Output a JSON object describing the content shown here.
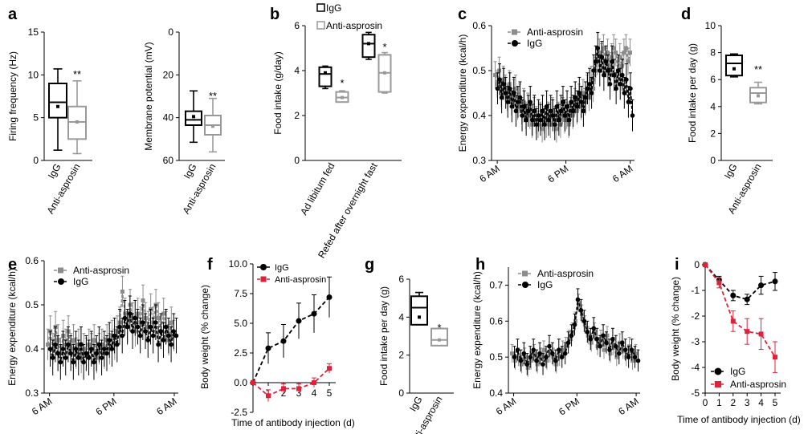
{
  "chart_data": [
    {
      "panel": "a",
      "type": "box",
      "categories": [
        "IgG",
        "Anti-asprosin"
      ],
      "ylabel": "Firing frequency (Hz)",
      "ylim": [
        0,
        15
      ],
      "yticks": [
        0,
        5,
        10,
        15
      ],
      "boxes": [
        {
          "min": 1.2,
          "q1": 5.0,
          "median": 6.8,
          "q3": 9.0,
          "max": 10.7,
          "mean": 6.3
        },
        {
          "min": 0.8,
          "q1": 2.5,
          "median": 4.5,
          "q3": 6.3,
          "max": 9.3,
          "mean": 4.5
        }
      ],
      "annotation": "**",
      "colors": [
        "#000000",
        "#999999"
      ]
    },
    {
      "panel": "a2",
      "type": "box",
      "categories": [
        "IgG",
        "Anti-asprosin"
      ],
      "ylabel": "Membrane potential (mV)",
      "ylim": [
        0,
        60
      ],
      "yticks": [
        0,
        20,
        40,
        60
      ],
      "inverted": true,
      "boxes": [
        {
          "min": 27.5,
          "q1": 37,
          "median": 41,
          "q3": 43.5,
          "max": 51.5,
          "mean": 39.5
        },
        {
          "min": 31,
          "q1": 39,
          "median": 43.5,
          "q3": 48,
          "max": 56,
          "mean": 44
        }
      ],
      "annotation": "**",
      "colors": [
        "#000000",
        "#999999"
      ]
    },
    {
      "panel": "b",
      "type": "box",
      "categories": [
        "Ad libitum fed",
        "Refed after overnight fast"
      ],
      "ylabel": "Food intake (g/day)",
      "ylim": [
        0,
        6
      ],
      "yticks": [
        0,
        2,
        4,
        6
      ],
      "legend": [
        "IgG",
        "Anti-asprosin"
      ],
      "groups": [
        [
          {
            "min": 3.2,
            "q1": 3.3,
            "median": 3.85,
            "q3": 4.15,
            "max": 4.2,
            "mean": 3.9
          },
          {
            "min": 2.6,
            "q1": 2.6,
            "median": 2.8,
            "q3": 3.05,
            "max": 3.1,
            "mean": 2.8
          }
        ],
        [
          {
            "min": 4.5,
            "q1": 4.6,
            "median": 5.2,
            "q3": 5.6,
            "max": 5.7,
            "mean": 5.2
          },
          {
            "min": 3.0,
            "q1": 3.05,
            "median": 3.9,
            "q3": 4.7,
            "max": 4.8,
            "mean": 3.9
          }
        ]
      ],
      "annotation": "*",
      "colors": [
        "#000000",
        "#999999"
      ]
    },
    {
      "panel": "c",
      "type": "line",
      "ylabel": "Energy expenditure (kcal/h)",
      "ylim": [
        0.3,
        0.6
      ],
      "yticks": [
        0.3,
        0.4,
        0.5
      ],
      "xticks": [
        "6 AM",
        "6 PM",
        "6 AM"
      ],
      "series": [
        {
          "name": "Anti-asprosin",
          "marker": "square",
          "color": "#8c8c8c",
          "values": [
            0.49,
            0.47,
            0.5,
            0.45,
            0.48,
            0.46,
            0.44,
            0.47,
            0.43,
            0.45,
            0.46,
            0.42,
            0.44,
            0.41,
            0.43,
            0.4,
            0.42,
            0.4,
            0.38,
            0.41,
            0.39,
            0.38,
            0.4,
            0.37,
            0.39,
            0.38,
            0.4,
            0.38,
            0.41,
            0.39,
            0.37,
            0.4,
            0.38,
            0.41,
            0.39,
            0.4,
            0.38,
            0.41,
            0.4,
            0.43,
            0.41,
            0.44,
            0.42,
            0.45,
            0.43,
            0.46,
            0.44,
            0.48,
            0.46,
            0.5,
            0.52,
            0.54,
            0.53,
            0.55,
            0.52,
            0.54,
            0.51,
            0.53,
            0.55,
            0.54,
            0.5,
            0.53,
            0.51,
            0.54,
            0.55,
            0.52,
            0.54
          ],
          "err": 0.03
        },
        {
          "name": "IgG",
          "marker": "circle",
          "color": "#000000",
          "values": [
            0.46,
            0.48,
            0.44,
            0.47,
            0.45,
            0.43,
            0.46,
            0.42,
            0.45,
            0.41,
            0.43,
            0.44,
            0.4,
            0.42,
            0.39,
            0.41,
            0.43,
            0.39,
            0.41,
            0.38,
            0.4,
            0.39,
            0.41,
            0.38,
            0.42,
            0.39,
            0.41,
            0.4,
            0.38,
            0.42,
            0.39,
            0.41,
            0.43,
            0.4,
            0.42,
            0.39,
            0.43,
            0.41,
            0.44,
            0.42,
            0.45,
            0.43,
            0.41,
            0.44,
            0.46,
            0.47,
            0.45,
            0.5,
            0.52,
            0.55,
            0.5,
            0.53,
            0.49,
            0.52,
            0.5,
            0.47,
            0.52,
            0.49,
            0.46,
            0.5,
            0.47,
            0.49,
            0.45,
            0.48,
            0.43,
            0.46,
            0.4
          ],
          "err": 0.035
        }
      ]
    },
    {
      "panel": "d",
      "type": "box",
      "categories": [
        "IgG",
        "Anti-asprosin"
      ],
      "ylabel": "Food intake per day (g)",
      "ylim": [
        0,
        10
      ],
      "yticks": [
        0,
        2,
        4,
        6,
        8,
        10
      ],
      "boxes": [
        {
          "min": 6.2,
          "q1": 6.3,
          "median": 7.2,
          "q3": 7.8,
          "max": 7.9,
          "mean": 6.8
        },
        {
          "min": 4.2,
          "q1": 4.3,
          "median": 5.0,
          "q3": 5.4,
          "max": 5.8,
          "mean": 4.8
        }
      ],
      "annotation": "**",
      "colors": [
        "#000000",
        "#999999"
      ]
    },
    {
      "panel": "e",
      "type": "line",
      "ylabel": "Energy expenditure (kcal/h)",
      "ylim": [
        0.3,
        0.6
      ],
      "yticks": [
        0.3,
        0.4,
        0.5,
        0.6
      ],
      "xticks": [
        "6 AM",
        "6 PM",
        "6 AM"
      ],
      "series": [
        {
          "name": "Anti-asprosin",
          "marker": "square",
          "color": "#8c8c8c",
          "values": [
            0.41,
            0.44,
            0.4,
            0.45,
            0.42,
            0.39,
            0.43,
            0.41,
            0.44,
            0.4,
            0.42,
            0.39,
            0.41,
            0.38,
            0.4,
            0.39,
            0.41,
            0.4,
            0.42,
            0.38,
            0.4,
            0.41,
            0.39,
            0.42,
            0.4,
            0.43,
            0.41,
            0.44,
            0.46,
            0.53,
            0.48,
            0.45,
            0.5,
            0.47,
            0.44,
            0.48,
            0.46,
            0.51,
            0.47,
            0.45,
            0.49,
            0.46,
            0.5,
            0.47,
            0.44,
            0.48,
            0.45,
            0.42,
            0.46,
            0.43
          ],
          "err": 0.035
        },
        {
          "name": "IgG",
          "marker": "circle",
          "color": "#000000",
          "values": [
            0.4,
            0.38,
            0.41,
            0.39,
            0.37,
            0.4,
            0.38,
            0.41,
            0.39,
            0.37,
            0.4,
            0.38,
            0.41,
            0.37,
            0.39,
            0.38,
            0.4,
            0.37,
            0.39,
            0.41,
            0.38,
            0.4,
            0.39,
            0.42,
            0.4,
            0.43,
            0.41,
            0.45,
            0.43,
            0.47,
            0.45,
            0.48,
            0.44,
            0.47,
            0.45,
            0.43,
            0.46,
            0.44,
            0.42,
            0.45,
            0.43,
            0.46,
            0.41,
            0.44,
            0.42,
            0.45,
            0.43,
            0.41,
            0.44,
            0.43
          ],
          "err": 0.04
        }
      ]
    },
    {
      "panel": "f",
      "type": "line",
      "ylabel": "Body weight (% change)",
      "xlabel": "Time of antibody injection (d)",
      "ylim": [
        -2.5,
        10
      ],
      "yticks": [
        -2.5,
        0,
        2.5,
        5,
        7.5,
        10
      ],
      "x": [
        0,
        1,
        2,
        3,
        4,
        5
      ],
      "series": [
        {
          "name": "IgG",
          "marker": "circle",
          "color": "#000000",
          "values": [
            0,
            2.9,
            3.5,
            5.2,
            5.8,
            7.2
          ],
          "err": [
            0,
            1.3,
            1.4,
            1.5,
            1.6,
            1.7
          ]
        },
        {
          "name": "Anti-asprosin",
          "marker": "square",
          "color": "#e0213a",
          "values": [
            0,
            -1.1,
            -0.5,
            -0.5,
            0,
            1.2
          ],
          "err": [
            0,
            0.5,
            0.4,
            0.4,
            0.4,
            0.4
          ]
        }
      ]
    },
    {
      "panel": "g",
      "type": "box",
      "categories": [
        "IgG",
        "Anti-asprosin"
      ],
      "ylabel": "Food intake per day (g)",
      "ylim": [
        0,
        6
      ],
      "yticks": [
        0,
        2,
        4,
        6
      ],
      "boxes": [
        {
          "min": 3.6,
          "q1": 3.6,
          "median": 4.5,
          "q3": 5.1,
          "max": 5.3,
          "mean": 4.0
        },
        {
          "min": 2.5,
          "q1": 2.5,
          "median": 2.8,
          "q3": 3.4,
          "max": 3.4,
          "mean": 2.8
        }
      ],
      "annotation": "*",
      "colors": [
        "#000000",
        "#999999"
      ]
    },
    {
      "panel": "h",
      "type": "line",
      "ylabel": "Energy expenditure (kcal/h)",
      "ylim": [
        0.4,
        0.75
      ],
      "yticks": [
        0.4,
        0.5,
        0.6,
        0.7
      ],
      "xticks": [
        "6 AM",
        "6 PM",
        "6 AM"
      ],
      "series": [
        {
          "name": "Anti-asprosin",
          "marker": "square",
          "color": "#8c8c8c",
          "values": [
            0.51,
            0.49,
            0.5,
            0.48,
            0.5,
            0.47,
            0.49,
            0.51,
            0.48,
            0.5,
            0.52,
            0.49,
            0.51,
            0.5,
            0.48,
            0.5,
            0.52,
            0.53,
            0.55,
            0.57,
            0.6,
            0.65,
            0.62,
            0.59,
            0.56,
            0.54,
            0.57,
            0.53,
            0.55,
            0.52,
            0.56,
            0.51,
            0.53,
            0.5,
            0.54,
            0.52,
            0.5,
            0.53,
            0.49,
            0.51
          ],
          "err": 0.025
        },
        {
          "name": "IgG",
          "marker": "circle",
          "color": "#000000",
          "values": [
            0.5,
            0.52,
            0.49,
            0.51,
            0.48,
            0.5,
            0.52,
            0.49,
            0.51,
            0.48,
            0.5,
            0.53,
            0.51,
            0.49,
            0.52,
            0.5,
            0.51,
            0.54,
            0.56,
            0.59,
            0.66,
            0.63,
            0.6,
            0.57,
            0.55,
            0.58,
            0.55,
            0.53,
            0.56,
            0.54,
            0.52,
            0.55,
            0.53,
            0.51,
            0.54,
            0.52,
            0.5,
            0.52,
            0.5,
            0.49
          ],
          "err": 0.03
        }
      ]
    },
    {
      "panel": "i",
      "type": "line",
      "ylabel": "Body weight (% change)",
      "xlabel": "Time of antibody injection (d)",
      "ylim": [
        -5,
        0
      ],
      "yticks": [
        -5,
        -4,
        -3,
        -2,
        -1,
        0
      ],
      "x": [
        0,
        1,
        2,
        3,
        4,
        5
      ],
      "series": [
        {
          "name": "IgG",
          "marker": "circle",
          "color": "#000000",
          "values": [
            0,
            -0.6,
            -1.2,
            -1.35,
            -0.8,
            -0.65
          ],
          "err": [
            0,
            0.15,
            0.2,
            0.2,
            0.35,
            0.35
          ]
        },
        {
          "name": "Anti-asprosin",
          "marker": "square",
          "color": "#e0213a",
          "values": [
            0,
            -0.7,
            -2.2,
            -2.6,
            -2.7,
            -3.6
          ],
          "err": [
            0,
            0.2,
            0.4,
            0.5,
            0.6,
            0.6
          ]
        }
      ]
    }
  ],
  "labels": {
    "a": "a",
    "b": "b",
    "c": "c",
    "d": "d",
    "e": "e",
    "f": "f",
    "g": "g",
    "h": "h",
    "i": "i",
    "xticks_f": [
      "1",
      "2",
      "3",
      "4",
      "5"
    ],
    "xticks_i": [
      "0",
      "1",
      "2",
      "3",
      "4",
      "5"
    ]
  }
}
